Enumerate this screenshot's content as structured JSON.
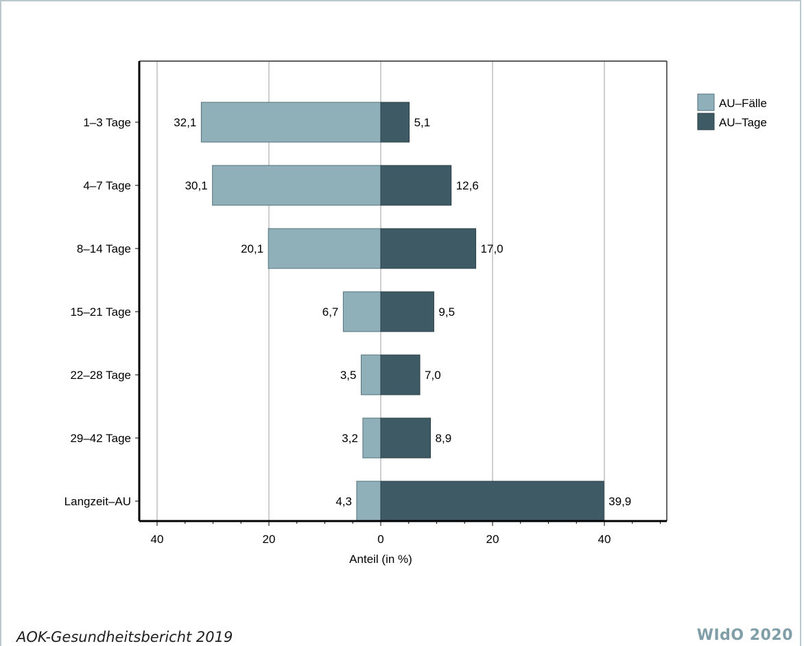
{
  "chart_data": {
    "type": "bar",
    "orientation": "horizontal-diverging",
    "categories": [
      "1–3 Tage",
      "4–7 Tage",
      "8–14 Tage",
      "15–21 Tage",
      "22–28 Tage",
      "29–42 Tage",
      "Langzeit–AU"
    ],
    "series": [
      {
        "name": "AU–Fälle",
        "side": "left",
        "color": "#8fb0b9",
        "values": [
          32.1,
          30.1,
          20.1,
          6.7,
          3.5,
          3.2,
          4.3
        ],
        "labels": [
          "32,1",
          "30,1",
          "20,1",
          "6,7",
          "3,5",
          "3,2",
          "4,3"
        ]
      },
      {
        "name": "AU–Tage",
        "side": "right",
        "color": "#3e5b65",
        "values": [
          5.1,
          12.6,
          17.0,
          9.5,
          7.0,
          8.9,
          39.9
        ],
        "labels": [
          "5,1",
          "12,6",
          "17,0",
          "9,5",
          "7,0",
          "8,9",
          "39,9"
        ]
      }
    ],
    "xlabel": "Anteil (in %)",
    "xlim": [
      -40,
      40
    ],
    "xticks": [
      -40,
      -20,
      0,
      20,
      40
    ],
    "xtick_labels": [
      "40",
      "20",
      "0",
      "20",
      "40"
    ],
    "grid": true,
    "legend_position": "right"
  },
  "footer": {
    "source": "AOK-Gesundheitsbericht 2019",
    "publisher": "WIdO 2020"
  }
}
